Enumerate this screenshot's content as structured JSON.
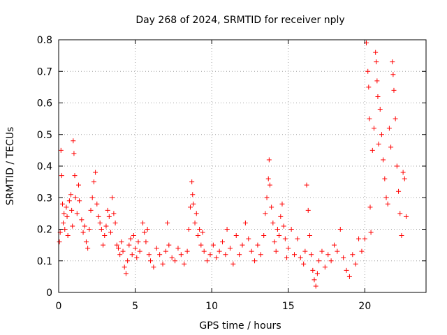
{
  "chart_data": {
    "type": "scatter",
    "title": "Day 268 of 2024, SRMTID for receiver nply",
    "xlabel": "GPS time / hours",
    "ylabel": "SRMTID / TECUs",
    "xlim": [
      0,
      24
    ],
    "ylim": [
      0,
      0.8
    ],
    "xticks": [
      0,
      5,
      10,
      15,
      20
    ],
    "xtick_labels": [
      "0",
      "5",
      "10",
      "15",
      "20"
    ],
    "yticks": [
      0,
      0.1,
      0.2,
      0.3,
      0.4,
      0.5,
      0.6,
      0.7,
      0.8
    ],
    "ytick_labels": [
      "0",
      "0.1",
      "0.2",
      "0.3",
      "0.4",
      "0.5",
      "0.6",
      "0.7",
      "0.8"
    ],
    "grid": true,
    "marker": "+",
    "marker_color": "#ff0000",
    "series": [
      {
        "name": "SRMTID",
        "color": "#ff0000",
        "points": [
          [
            0.05,
            0.16
          ],
          [
            0.1,
            0.19
          ],
          [
            0.15,
            0.45
          ],
          [
            0.2,
            0.37
          ],
          [
            0.25,
            0.28
          ],
          [
            0.3,
            0.22
          ],
          [
            0.35,
            0.25
          ],
          [
            0.4,
            0.2
          ],
          [
            0.5,
            0.27
          ],
          [
            0.55,
            0.24
          ],
          [
            0.6,
            0.18
          ],
          [
            0.7,
            0.29
          ],
          [
            0.8,
            0.31
          ],
          [
            0.85,
            0.26
          ],
          [
            0.9,
            0.21
          ],
          [
            0.95,
            0.48
          ],
          [
            1.0,
            0.44
          ],
          [
            1.05,
            0.37
          ],
          [
            1.1,
            0.3
          ],
          [
            1.2,
            0.25
          ],
          [
            1.3,
            0.34
          ],
          [
            1.35,
            0.29
          ],
          [
            1.5,
            0.23
          ],
          [
            1.6,
            0.19
          ],
          [
            1.7,
            0.21
          ],
          [
            1.8,
            0.16
          ],
          [
            1.9,
            0.14
          ],
          [
            2.0,
            0.2
          ],
          [
            2.1,
            0.26
          ],
          [
            2.2,
            0.3
          ],
          [
            2.3,
            0.35
          ],
          [
            2.4,
            0.38
          ],
          [
            2.5,
            0.28
          ],
          [
            2.6,
            0.24
          ],
          [
            2.7,
            0.22
          ],
          [
            2.8,
            0.2
          ],
          [
            2.9,
            0.15
          ],
          [
            3.0,
            0.18
          ],
          [
            3.1,
            0.21
          ],
          [
            3.2,
            0.26
          ],
          [
            3.3,
            0.24
          ],
          [
            3.4,
            0.19
          ],
          [
            3.5,
            0.3
          ],
          [
            3.6,
            0.25
          ],
          [
            3.7,
            0.22
          ],
          [
            3.8,
            0.15
          ],
          [
            3.9,
            0.14
          ],
          [
            4.0,
            0.12
          ],
          [
            4.1,
            0.16
          ],
          [
            4.2,
            0.13
          ],
          [
            4.3,
            0.08
          ],
          [
            4.4,
            0.06
          ],
          [
            4.5,
            0.1
          ],
          [
            4.6,
            0.15
          ],
          [
            4.7,
            0.17
          ],
          [
            4.8,
            0.12
          ],
          [
            4.9,
            0.18
          ],
          [
            5.0,
            0.14
          ],
          [
            5.1,
            0.11
          ],
          [
            5.2,
            0.16
          ],
          [
            5.3,
            0.13
          ],
          [
            5.5,
            0.22
          ],
          [
            5.6,
            0.19
          ],
          [
            5.7,
            0.16
          ],
          [
            5.8,
            0.2
          ],
          [
            5.9,
            0.12
          ],
          [
            6.0,
            0.1
          ],
          [
            6.2,
            0.08
          ],
          [
            6.4,
            0.14
          ],
          [
            6.6,
            0.12
          ],
          [
            6.8,
            0.09
          ],
          [
            7.0,
            0.13
          ],
          [
            7.1,
            0.22
          ],
          [
            7.2,
            0.15
          ],
          [
            7.4,
            0.11
          ],
          [
            7.6,
            0.1
          ],
          [
            7.8,
            0.14
          ],
          [
            8.0,
            0.12
          ],
          [
            8.2,
            0.09
          ],
          [
            8.4,
            0.13
          ],
          [
            8.5,
            0.2
          ],
          [
            8.6,
            0.27
          ],
          [
            8.7,
            0.35
          ],
          [
            8.75,
            0.31
          ],
          [
            8.8,
            0.28
          ],
          [
            8.9,
            0.22
          ],
          [
            9.0,
            0.25
          ],
          [
            9.1,
            0.18
          ],
          [
            9.2,
            0.2
          ],
          [
            9.3,
            0.15
          ],
          [
            9.4,
            0.19
          ],
          [
            9.5,
            0.13
          ],
          [
            9.7,
            0.1
          ],
          [
            9.9,
            0.12
          ],
          [
            10.1,
            0.15
          ],
          [
            10.3,
            0.11
          ],
          [
            10.5,
            0.13
          ],
          [
            10.7,
            0.16
          ],
          [
            10.9,
            0.12
          ],
          [
            11.0,
            0.2
          ],
          [
            11.2,
            0.14
          ],
          [
            11.4,
            0.09
          ],
          [
            11.6,
            0.18
          ],
          [
            11.8,
            0.12
          ],
          [
            12.0,
            0.15
          ],
          [
            12.2,
            0.22
          ],
          [
            12.4,
            0.17
          ],
          [
            12.6,
            0.13
          ],
          [
            12.8,
            0.1
          ],
          [
            13.0,
            0.15
          ],
          [
            13.2,
            0.12
          ],
          [
            13.4,
            0.18
          ],
          [
            13.5,
            0.25
          ],
          [
            13.6,
            0.3
          ],
          [
            13.7,
            0.36
          ],
          [
            13.75,
            0.42
          ],
          [
            13.8,
            0.34
          ],
          [
            13.9,
            0.27
          ],
          [
            14.0,
            0.22
          ],
          [
            14.1,
            0.16
          ],
          [
            14.2,
            0.13
          ],
          [
            14.3,
            0.2
          ],
          [
            14.4,
            0.18
          ],
          [
            14.5,
            0.24
          ],
          [
            14.6,
            0.28
          ],
          [
            14.7,
            0.21
          ],
          [
            14.8,
            0.17
          ],
          [
            14.9,
            0.11
          ],
          [
            15.0,
            0.14
          ],
          [
            15.2,
            0.2
          ],
          [
            15.4,
            0.12
          ],
          [
            15.6,
            0.17
          ],
          [
            15.8,
            0.11
          ],
          [
            16.0,
            0.09
          ],
          [
            16.1,
            0.13
          ],
          [
            16.2,
            0.34
          ],
          [
            16.3,
            0.26
          ],
          [
            16.4,
            0.18
          ],
          [
            16.5,
            0.12
          ],
          [
            16.6,
            0.07
          ],
          [
            16.7,
            0.04
          ],
          [
            16.8,
            0.02
          ],
          [
            16.9,
            0.06
          ],
          [
            17.0,
            0.1
          ],
          [
            17.2,
            0.13
          ],
          [
            17.4,
            0.08
          ],
          [
            17.6,
            0.12
          ],
          [
            17.8,
            0.1
          ],
          [
            18.0,
            0.15
          ],
          [
            18.2,
            0.13
          ],
          [
            18.4,
            0.2
          ],
          [
            18.6,
            0.11
          ],
          [
            18.8,
            0.07
          ],
          [
            19.0,
            0.05
          ],
          [
            19.2,
            0.12
          ],
          [
            19.4,
            0.09
          ],
          [
            19.6,
            0.17
          ],
          [
            19.8,
            0.13
          ],
          [
            20.0,
            0.17
          ],
          [
            20.1,
            0.79
          ],
          [
            20.2,
            0.7
          ],
          [
            20.25,
            0.65
          ],
          [
            20.3,
            0.55
          ],
          [
            20.35,
            0.27
          ],
          [
            20.4,
            0.19
          ],
          [
            20.5,
            0.45
          ],
          [
            20.6,
            0.52
          ],
          [
            20.7,
            0.76
          ],
          [
            20.75,
            0.73
          ],
          [
            20.8,
            0.67
          ],
          [
            20.85,
            0.62
          ],
          [
            20.9,
            0.47
          ],
          [
            21.0,
            0.58
          ],
          [
            21.1,
            0.5
          ],
          [
            21.2,
            0.42
          ],
          [
            21.3,
            0.36
          ],
          [
            21.4,
            0.3
          ],
          [
            21.5,
            0.28
          ],
          [
            21.6,
            0.52
          ],
          [
            21.7,
            0.46
          ],
          [
            21.8,
            0.73
          ],
          [
            21.85,
            0.69
          ],
          [
            21.9,
            0.64
          ],
          [
            22.0,
            0.55
          ],
          [
            22.1,
            0.4
          ],
          [
            22.2,
            0.32
          ],
          [
            22.3,
            0.25
          ],
          [
            22.4,
            0.18
          ],
          [
            22.5,
            0.38
          ],
          [
            22.6,
            0.36
          ],
          [
            22.7,
            0.24
          ]
        ]
      }
    ]
  }
}
